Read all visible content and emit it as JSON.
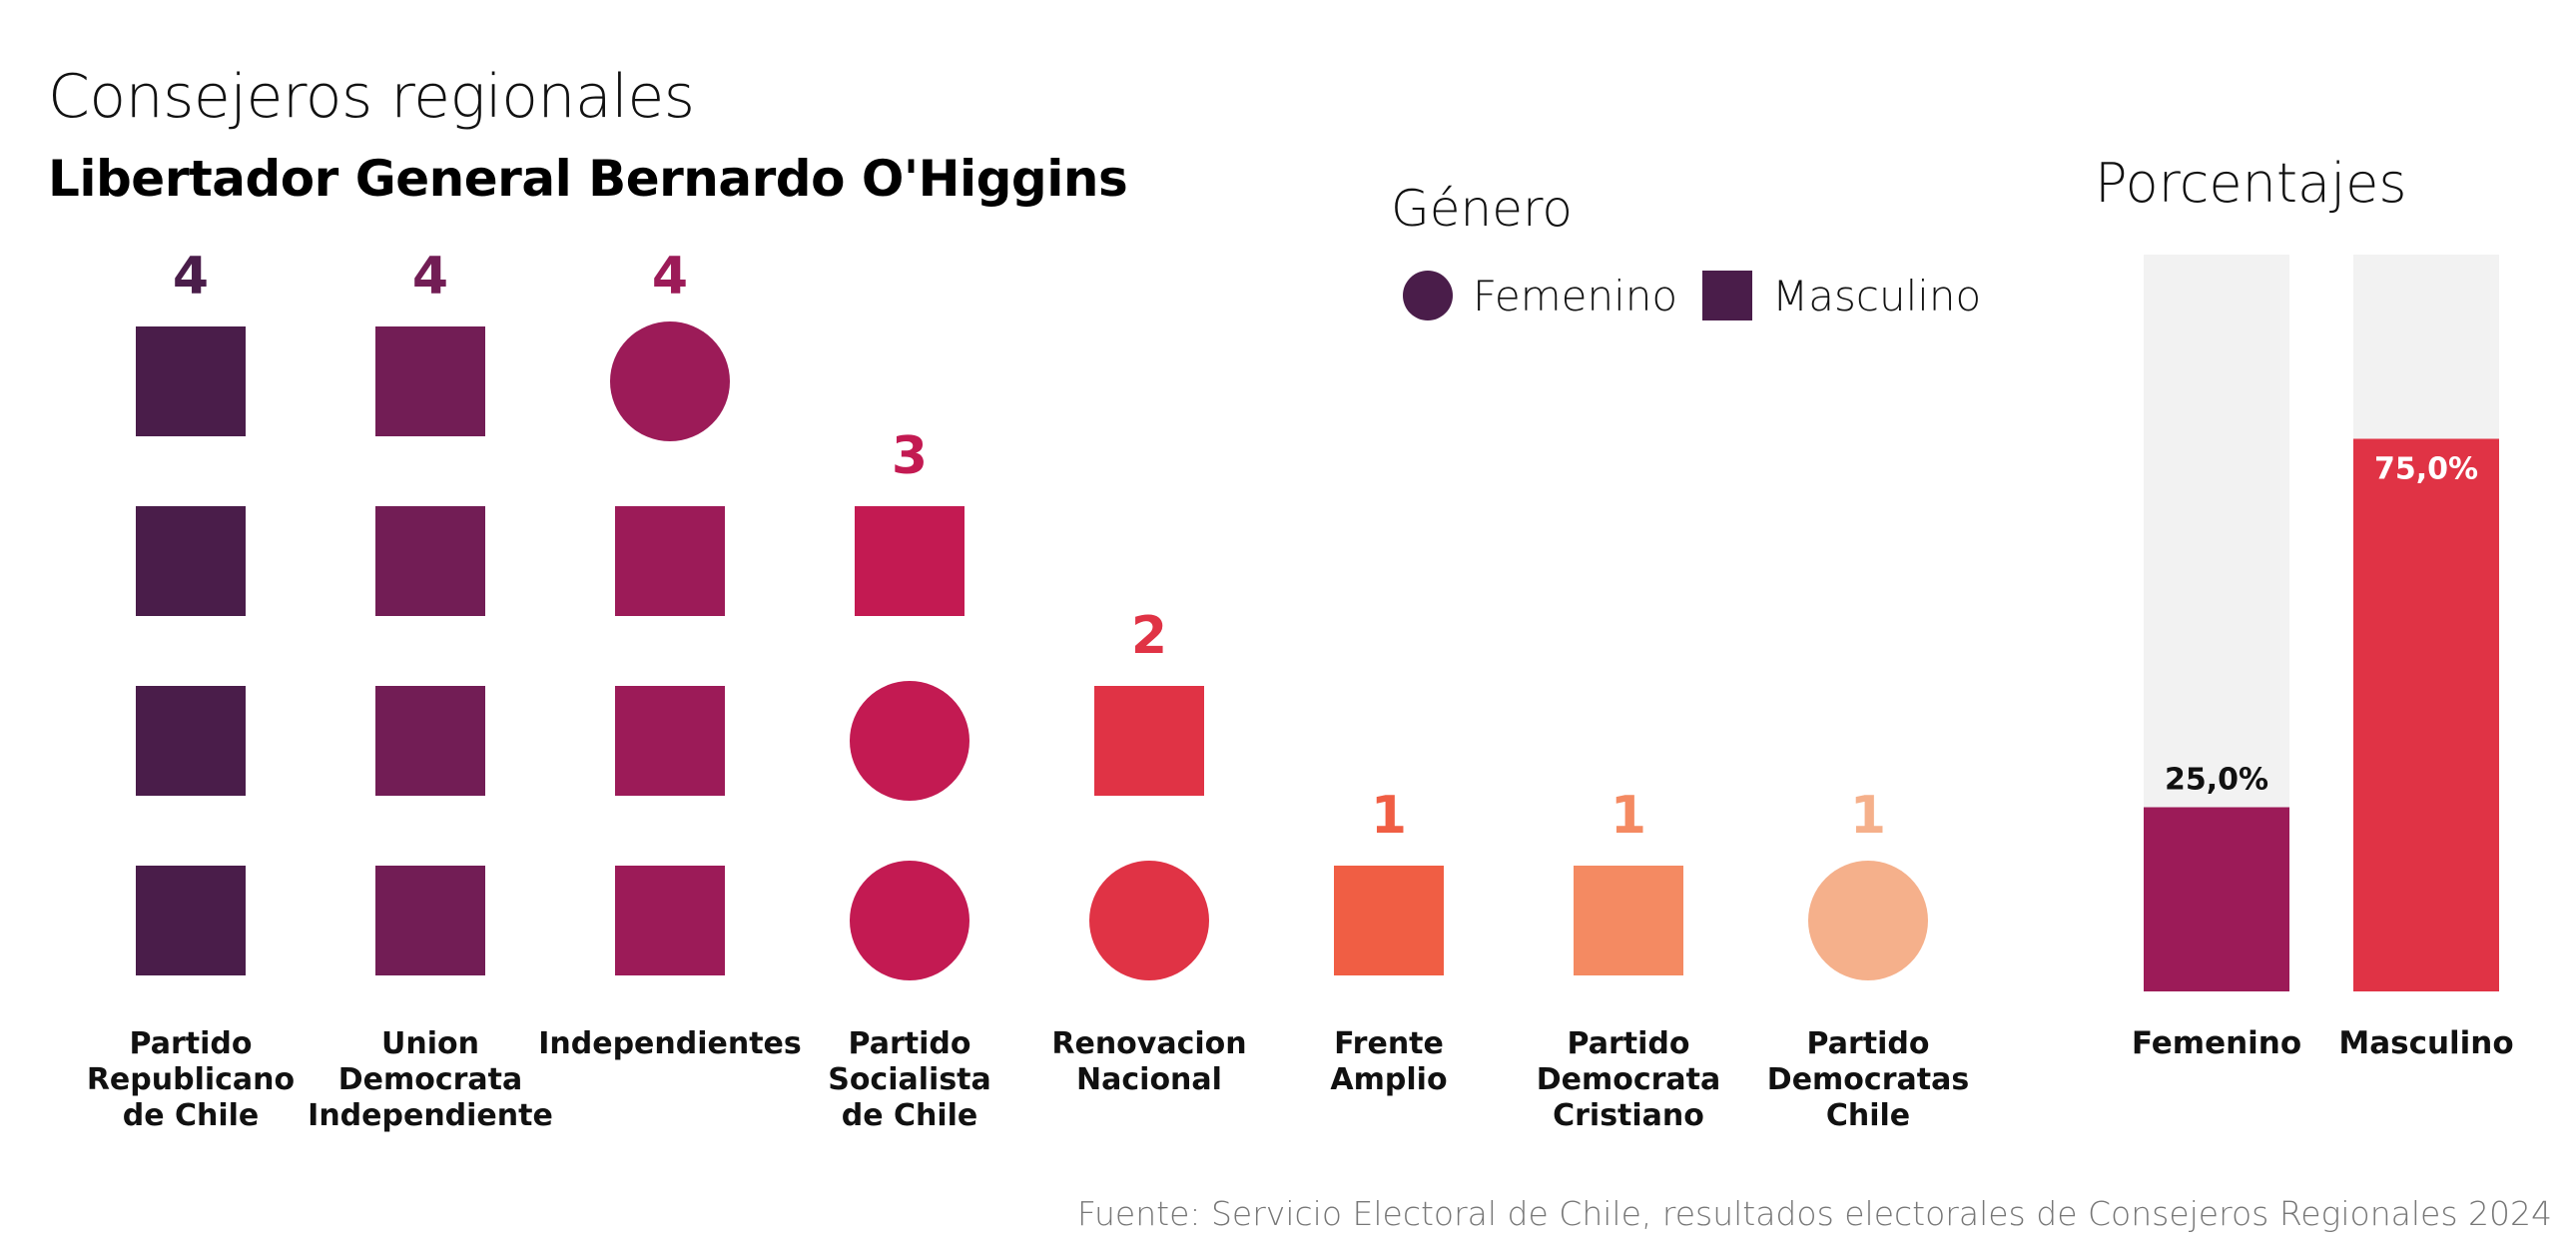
{
  "title": "Consejeros regionales",
  "subtitle": "Libertador General Bernardo O'Higgins",
  "legend": {
    "title": "Género",
    "femenino": "Femenino",
    "masculino": "Masculino",
    "color": "#4a1d4a"
  },
  "porcentajes_title": "Porcentajes",
  "source": "Fuente: Servicio Electoral de Chile, resultados electorales de Consejeros Regionales 2024",
  "chart_data": [
    {
      "type": "scatter",
      "title": "Libertador General Bernardo O'Higgins",
      "parties": [
        {
          "name": "Partido\nRepublicano\nde Chile",
          "count": 4,
          "color": "#4a1d4a",
          "members": [
            "M",
            "M",
            "M",
            "M"
          ]
        },
        {
          "name": "Union\nDemocrata\nIndependiente",
          "count": 4,
          "color": "#721d55",
          "members": [
            "M",
            "M",
            "M",
            "M"
          ]
        },
        {
          "name": "Independientes",
          "count": 4,
          "color": "#9c1b58",
          "members": [
            "M",
            "M",
            "M",
            "F"
          ]
        },
        {
          "name": "Partido\nSocialista\nde Chile",
          "count": 3,
          "color": "#c31a52",
          "members": [
            "F",
            "F",
            "M"
          ]
        },
        {
          "name": "Renovacion\nNacional",
          "count": 2,
          "color": "#e03345",
          "members": [
            "F",
            "M"
          ]
        },
        {
          "name": "Frente\nAmplio",
          "count": 1,
          "color": "#f05e44",
          "members": [
            "M"
          ]
        },
        {
          "name": "Partido\nDemocrata\nCristiano",
          "count": 1,
          "color": "#f48a62",
          "members": [
            "M"
          ]
        },
        {
          "name": "Partido\nDemocratas\nChile",
          "count": 1,
          "color": "#f5b08b",
          "members": [
            "F"
          ]
        }
      ]
    },
    {
      "type": "bar",
      "title": "Porcentajes",
      "categories": [
        "Femenino",
        "Masculino"
      ],
      "values": [
        25.0,
        75.0
      ],
      "labels": [
        "25,0%",
        "75,0%"
      ],
      "colors": [
        "#9c1b58",
        "#e03345"
      ],
      "background_color": "#f2f2f2",
      "ylim": [
        0,
        100
      ]
    }
  ]
}
